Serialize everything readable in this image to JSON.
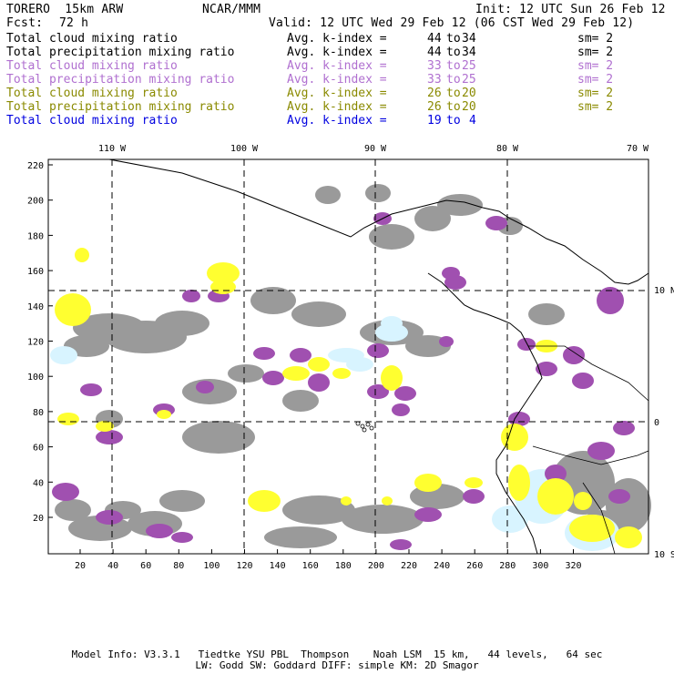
{
  "header": {
    "model": "TORERO  15km ARW",
    "center": "NCAR/MMM",
    "init": "Init: 12 UTC Sun 26 Feb 12",
    "fcst_label": "Fcst:",
    "fcst_value": "72 h",
    "valid": "Valid: 12 UTC Wed 29 Feb 12 (06 CST Wed 29 Feb 12)"
  },
  "fields": [
    {
      "name": "Total cloud mixing ratio",
      "k_index": "Avg. k-index = ",
      "k_from": "44",
      "to": "to",
      "k_to": "34",
      "sm": "sm= 2",
      "color": "#000000"
    },
    {
      "name": "Total precipitation mixing ratio",
      "k_index": "Avg. k-index = ",
      "k_from": "44",
      "to": "to",
      "k_to": "34",
      "sm": "sm= 2",
      "color": "#000000"
    },
    {
      "name": "Total cloud mixing ratio",
      "k_index": "Avg. k-index = ",
      "k_from": "33",
      "to": "to",
      "k_to": "25",
      "sm": "sm= 2",
      "color": "#b070d0"
    },
    {
      "name": "Total precipitation mixing ratio",
      "k_index": "Avg. k-index = ",
      "k_from": "33",
      "to": "to",
      "k_to": "25",
      "sm": "sm= 2",
      "color": "#b070d0"
    },
    {
      "name": "Total cloud mixing ratio",
      "k_index": "Avg. k-index = ",
      "k_from": "26",
      "to": "to",
      "k_to": "20",
      "sm": "sm= 2",
      "color": "#8a8a00"
    },
    {
      "name": "Total precipitation mixing ratio",
      "k_index": "Avg. k-index = ",
      "k_from": "26",
      "to": "to",
      "k_to": "20",
      "sm": "sm= 2",
      "color": "#8a8a00"
    },
    {
      "name": "Total cloud mixing ratio",
      "k_index": "Avg. k-index = ",
      "k_from": "19",
      "to": "to",
      "k_to": "4",
      "sm": "",
      "color": "#0000e0"
    }
  ],
  "map": {
    "lon_labels": [
      "110 W",
      "100 W",
      "90 W",
      "80 W",
      "70 W"
    ],
    "lat_labels": [
      "10 N",
      "0",
      "10 S"
    ],
    "y_ticks": [
      "220",
      "200",
      "180",
      "160",
      "140",
      "120",
      "100",
      "80",
      "60",
      "40",
      "20"
    ],
    "x_ticks": [
      "20",
      "40",
      "60",
      "80",
      "100",
      "120",
      "140",
      "160",
      "180",
      "200",
      "220",
      "240",
      "260",
      "280",
      "300",
      "320"
    ],
    "colors": {
      "gray": "#9a9a9a",
      "purple": "#a050b0",
      "yellow": "#ffff30",
      "cyan": "#d8f4ff",
      "land": "#000000"
    }
  },
  "footer": {
    "line1": "Model Info: V3.3.1   Tiedtke YSU PBL  Thompson    Noah LSM  15 km,   44 levels,   64 sec",
    "line2": "LW: Godd SW: Goddard DIFF: simple KM: 2D Smagor"
  }
}
